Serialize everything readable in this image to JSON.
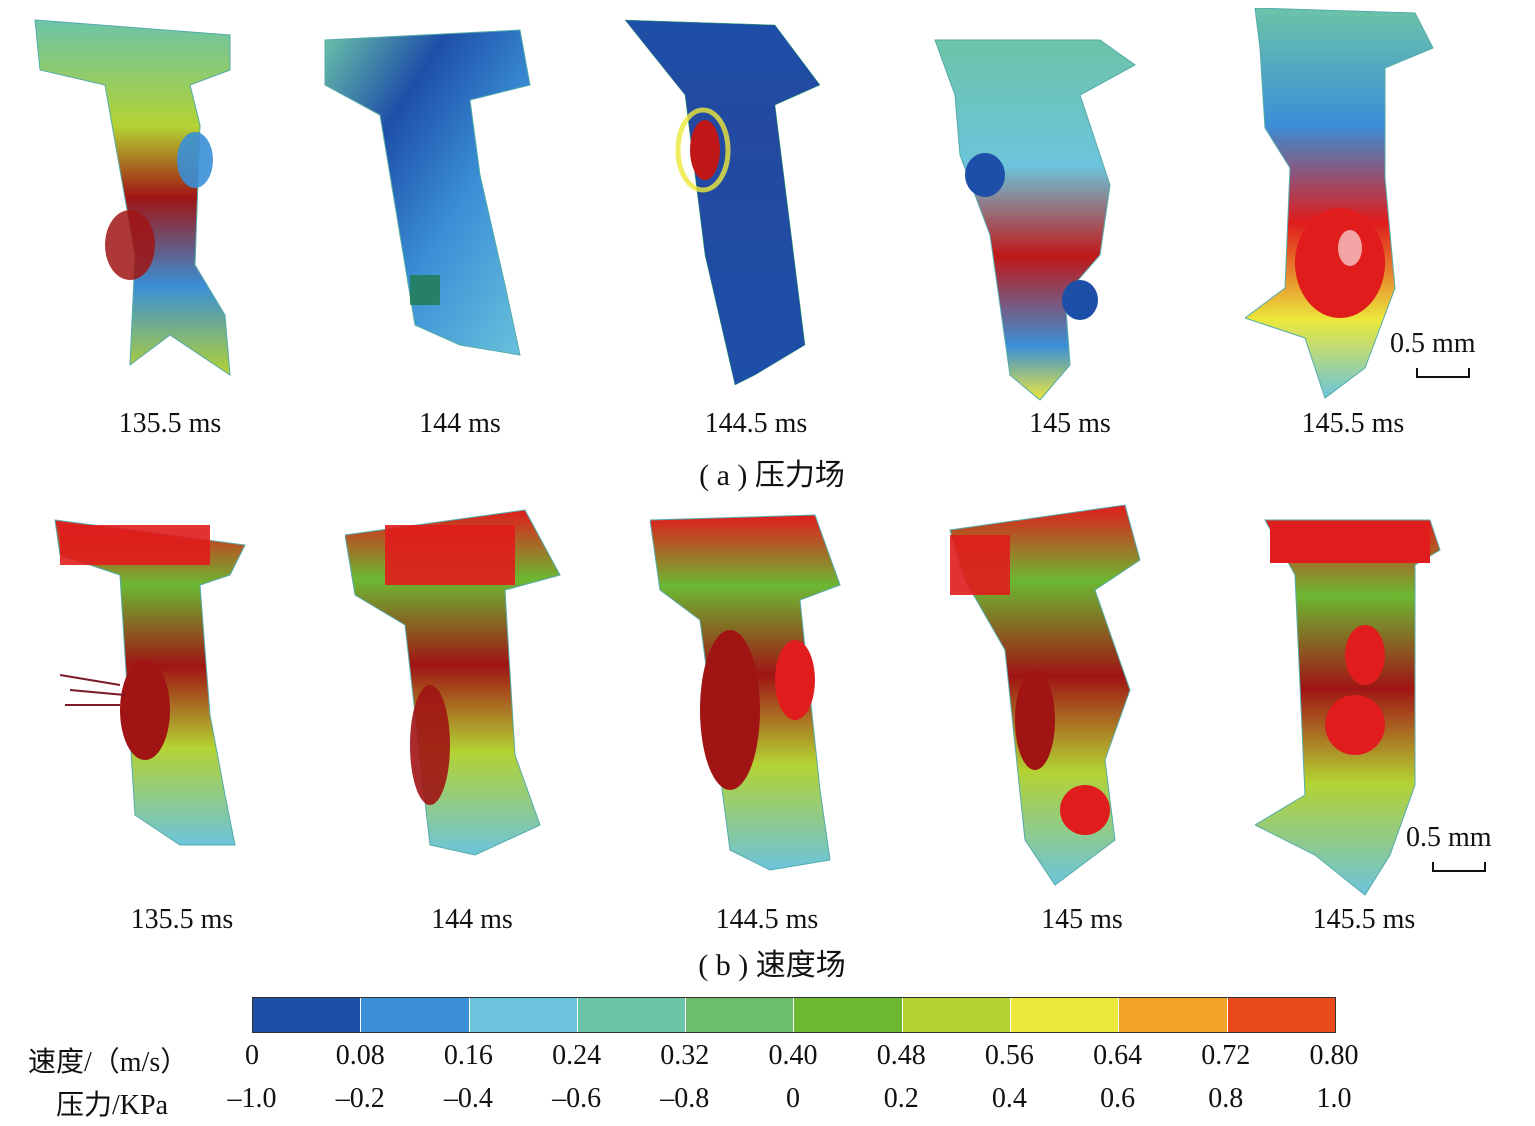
{
  "row_a": {
    "times": [
      "135.5 ms",
      "144 ms",
      "144.5 ms",
      "145 ms",
      "145.5 ms"
    ],
    "caption": "( a ) 压力场",
    "scalebar": "0.5 mm"
  },
  "row_b": {
    "times": [
      "135.5 ms",
      "144 ms",
      "144.5 ms",
      "145 ms",
      "145.5 ms"
    ],
    "caption": "( b ) 速度场",
    "scalebar": "0.5 mm"
  },
  "legend": {
    "colors": [
      "#1e4fa8",
      "#3a8fd6",
      "#6cc4dc",
      "#6cc4a8",
      "#6cbe6c",
      "#6cb832",
      "#b4d232",
      "#ece83c",
      "#f2a428",
      "#e84a1c"
    ],
    "velocity_label": "速度/（m/s）",
    "velocity_ticks": [
      "0",
      "0.08",
      "0.16",
      "0.24",
      "0.32",
      "0.40",
      "0.48",
      "0.56",
      "0.64",
      "0.72",
      "0.80"
    ],
    "pressure_label": "压力/KPa",
    "pressure_ticks": [
      "–1.0",
      "–0.2",
      "–0.4",
      "–0.6",
      "–0.8",
      "0",
      "0.2",
      "0.4",
      "0.6",
      "0.8",
      "1.0"
    ]
  }
}
